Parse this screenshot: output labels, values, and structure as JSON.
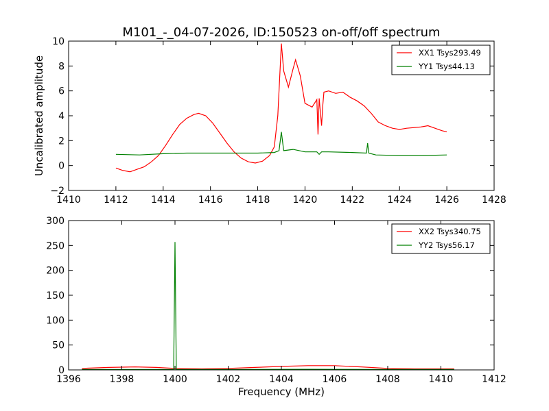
{
  "chart_data": [
    {
      "type": "line",
      "title": "M101_-_04-07-2026, ID:150523 on-off/off spectrum",
      "xlabel": "",
      "ylabel": "Uncalibrated amplitude",
      "xlim": [
        1410,
        1428
      ],
      "ylim": [
        -2,
        10
      ],
      "xticks": [
        1410,
        1412,
        1414,
        1416,
        1418,
        1420,
        1422,
        1424,
        1426,
        1428
      ],
      "yticks": [
        -2,
        0,
        2,
        4,
        6,
        8,
        10
      ],
      "xtick_labels": [
        "1410",
        "1412",
        "1414",
        "1416",
        "1418",
        "1420",
        "1422",
        "1424",
        "1426",
        "1428"
      ],
      "ytick_labels": [
        "−2",
        "0",
        "2",
        "4",
        "6",
        "8",
        "10"
      ],
      "grid": false,
      "legend_position": "top-right",
      "series": [
        {
          "name": "XX1 Tsys293.49",
          "color": "#ff0000",
          "x": [
            1412.0,
            1412.3,
            1412.6,
            1412.9,
            1413.2,
            1413.5,
            1413.8,
            1414.1,
            1414.4,
            1414.7,
            1415.0,
            1415.3,
            1415.5,
            1415.8,
            1416.1,
            1416.4,
            1416.7,
            1417.0,
            1417.3,
            1417.6,
            1417.9,
            1418.2,
            1418.5,
            1418.7,
            1418.85,
            1419.0,
            1419.1,
            1419.3,
            1419.5,
            1419.6,
            1419.8,
            1420.0,
            1420.3,
            1420.5,
            1420.55,
            1420.6,
            1420.7,
            1420.75,
            1420.8,
            1421.0,
            1421.3,
            1421.6,
            1421.9,
            1422.2,
            1422.5,
            1422.8,
            1423.1,
            1423.4,
            1423.7,
            1424.0,
            1424.3,
            1424.6,
            1424.9,
            1425.2,
            1425.5,
            1425.8,
            1426.0
          ],
          "y": [
            -0.2,
            -0.4,
            -0.5,
            -0.3,
            -0.1,
            0.3,
            0.8,
            1.6,
            2.5,
            3.3,
            3.8,
            4.1,
            4.2,
            4.0,
            3.4,
            2.6,
            1.8,
            1.1,
            0.6,
            0.3,
            0.2,
            0.35,
            0.8,
            1.5,
            4.0,
            9.8,
            7.6,
            6.3,
            7.8,
            8.5,
            7.2,
            5.0,
            4.7,
            5.3,
            2.5,
            5.4,
            3.2,
            4.8,
            5.9,
            6.0,
            5.8,
            5.9,
            5.5,
            5.2,
            4.8,
            4.2,
            3.5,
            3.2,
            3.0,
            2.9,
            3.0,
            3.05,
            3.1,
            3.2,
            3.0,
            2.8,
            2.7
          ]
        },
        {
          "name": "YY1 Tsys44.13",
          "color": "#008000",
          "x": [
            1412.0,
            1413.0,
            1414.0,
            1415.0,
            1416.0,
            1417.0,
            1418.0,
            1418.7,
            1418.9,
            1419.0,
            1419.1,
            1419.5,
            1420.0,
            1420.5,
            1420.6,
            1420.7,
            1421.0,
            1422.0,
            1422.6,
            1422.65,
            1422.7,
            1422.8,
            1423.0,
            1424.0,
            1425.0,
            1426.0
          ],
          "y": [
            0.9,
            0.85,
            0.95,
            1.0,
            1.0,
            1.0,
            1.0,
            1.05,
            1.2,
            2.7,
            1.2,
            1.3,
            1.1,
            1.1,
            0.9,
            1.1,
            1.1,
            1.05,
            1.0,
            1.8,
            1.0,
            0.95,
            0.85,
            0.8,
            0.8,
            0.85
          ]
        }
      ]
    },
    {
      "type": "line",
      "title": "",
      "xlabel": "Frequency (MHz)",
      "ylabel": "",
      "xlim": [
        1396,
        1412
      ],
      "ylim": [
        0,
        300
      ],
      "xticks": [
        1396,
        1398,
        1400,
        1402,
        1404,
        1406,
        1408,
        1410,
        1412
      ],
      "yticks": [
        0,
        50,
        100,
        150,
        200,
        250,
        300
      ],
      "xtick_labels": [
        "1396",
        "1398",
        "1400",
        "1402",
        "1404",
        "1406",
        "1408",
        "1410",
        "1412"
      ],
      "ytick_labels": [
        "0",
        "50",
        "100",
        "150",
        "200",
        "250",
        "300"
      ],
      "grid": false,
      "legend_position": "top-right",
      "series": [
        {
          "name": "XX2 Tsys340.75",
          "color": "#ff0000",
          "x": [
            1396.5,
            1397.5,
            1398.5,
            1399.3,
            1400.0,
            1401.0,
            1402.0,
            1403.0,
            1404.0,
            1405.0,
            1406.0,
            1407.0,
            1408.0,
            1409.0,
            1410.5
          ],
          "y": [
            3,
            5,
            6,
            5,
            3,
            2,
            3,
            5,
            7,
            8.5,
            8.5,
            6,
            3,
            2,
            2
          ]
        },
        {
          "name": "YY2 Tsys56.17",
          "color": "#008000",
          "x": [
            1396.5,
            1399.0,
            1399.95,
            1400.0,
            1400.05,
            1402.0,
            1405.0,
            1408.0,
            1410.5
          ],
          "y": [
            1,
            1,
            1,
            257,
            1,
            1,
            1.2,
            1,
            1
          ]
        }
      ]
    }
  ]
}
